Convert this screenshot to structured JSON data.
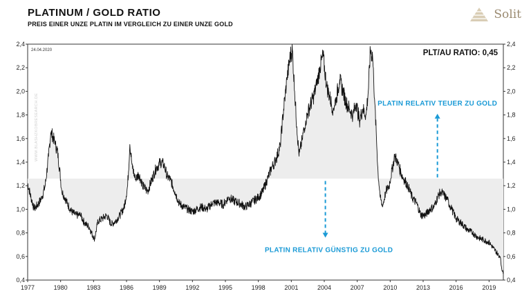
{
  "header": {
    "title": "PLATINUM / GOLD RATIO",
    "subtitle": "PREIS EINER UNZE PLATIN IM VERGLEICH ZU EINER UNZE GOLD",
    "logo_text": "Solit",
    "date": "24.04.2020",
    "watermark": "WWW.BLASHZKOBRESEARCH.DE"
  },
  "chart_data": {
    "type": "line",
    "title": "PLATINUM / GOLD RATIO",
    "subtitle": "PREIS EINER UNZE PLATIN IM VERGLEICH ZU EINER UNZE GOLD",
    "xlim": [
      1977,
      2020.3
    ],
    "ylim": [
      0.4,
      2.4
    ],
    "x_ticks": [
      1977,
      1980,
      1983,
      1986,
      1989,
      1992,
      1995,
      1998,
      2001,
      2004,
      2007,
      2010,
      2013,
      2016,
      2019
    ],
    "y_ticks": [
      0.4,
      0.6,
      0.8,
      1.0,
      1.2,
      1.4,
      1.6,
      1.8,
      2.0,
      2.2,
      2.4
    ],
    "y_tick_labels": [
      "0,4",
      "0,6",
      "0,8",
      "1,0",
      "1,2",
      "1,4",
      "1,6",
      "1,8",
      "2,0",
      "2,2",
      "2,4"
    ],
    "reference_level": 1.26,
    "current_label": "PLT/AU RATIO: 0,45",
    "annotations": [
      {
        "text": "PLATIN RELATIV TEUER ZU GOLD",
        "x": 2014.3,
        "y": 1.27,
        "arrow_to_y": 1.81
      },
      {
        "text": "PLATIN RELATIV GÜNSTIG ZU GOLD",
        "x": 2004.1,
        "y": 1.24,
        "arrow_to_y": 0.76
      }
    ],
    "series": [
      {
        "x": [
          1977,
          1977.3,
          1977.6,
          1978,
          1978.3,
          1978.6,
          1978.9,
          1979.1,
          1979.3,
          1979.5,
          1979.7,
          1979.9,
          1980.1,
          1980.3,
          1980.6,
          1981,
          1981.4,
          1981.8,
          1982.2,
          1982.6,
          1982.9,
          1983.1,
          1983.4,
          1983.8,
          1984.2,
          1984.6,
          1985,
          1985.4,
          1985.8,
          1986.1,
          1986.3,
          1986.5,
          1986.8,
          1987.1,
          1987.5,
          1987.9,
          1988.3,
          1988.7,
          1989.1,
          1989.4,
          1989.7,
          1990,
          1990.4,
          1990.8,
          1991.2,
          1991.6,
          1992,
          1992.4,
          1992.8,
          1993.3,
          1993.8,
          1994.3,
          1994.8,
          1995.3,
          1995.8,
          1996.3,
          1996.8,
          1997.3,
          1997.7,
          1998,
          1998.4,
          1998.8,
          1999.2,
          1999.6,
          2000,
          2000.3,
          2000.6,
          2000.9,
          2001.1,
          2001.3,
          2001.5,
          2001.7,
          2002,
          2002.3,
          2002.6,
          2003,
          2003.3,
          2003.6,
          2003.9,
          2004.2,
          2004.5,
          2004.8,
          2005.1,
          2005.4,
          2005.7,
          2006,
          2006.3,
          2006.6,
          2006.9,
          2007.2,
          2007.5,
          2007.8,
          2008,
          2008.2,
          2008.4,
          2008.5,
          2008.6,
          2008.75,
          2008.9,
          2009.1,
          2009.3,
          2009.6,
          2009.9,
          2010.2,
          2010.4,
          2010.7,
          2011,
          2011.3,
          2011.6,
          2012,
          2012.4,
          2012.8,
          2013.2,
          2013.6,
          2014,
          2014.3,
          2014.6,
          2014.9,
          2015.2,
          2015.6,
          2016,
          2016.5,
          2017,
          2017.5,
          2018,
          2018.5,
          2019,
          2019.4,
          2019.8,
          2020,
          2020.15,
          2020.3
        ],
        "y": [
          1.22,
          1.1,
          1.0,
          1.05,
          1.1,
          1.2,
          1.45,
          1.65,
          1.62,
          1.55,
          1.5,
          1.35,
          1.15,
          1.12,
          1.05,
          0.98,
          0.95,
          0.95,
          0.88,
          0.85,
          0.78,
          0.75,
          0.9,
          0.92,
          0.95,
          0.87,
          0.9,
          0.95,
          1.02,
          1.2,
          1.55,
          1.38,
          1.25,
          1.3,
          1.2,
          1.15,
          1.25,
          1.35,
          1.4,
          1.38,
          1.28,
          1.25,
          1.15,
          1.05,
          1.02,
          1.0,
          0.98,
          1.0,
          1.02,
          1.0,
          1.05,
          1.06,
          1.04,
          1.1,
          1.07,
          1.05,
          1.02,
          1.05,
          1.08,
          1.1,
          1.15,
          1.25,
          1.35,
          1.42,
          1.55,
          1.85,
          2.1,
          2.3,
          2.35,
          2.0,
          1.7,
          1.45,
          1.6,
          1.75,
          1.85,
          1.95,
          2.05,
          2.2,
          2.3,
          2.05,
          1.95,
          1.85,
          1.95,
          2.1,
          2.0,
          1.9,
          1.85,
          1.8,
          1.9,
          1.75,
          1.85,
          1.8,
          2.0,
          2.35,
          2.3,
          2.1,
          1.9,
          1.6,
          1.3,
          1.1,
          1.02,
          1.15,
          1.2,
          1.35,
          1.45,
          1.4,
          1.3,
          1.25,
          1.2,
          1.1,
          1.05,
          0.95,
          0.95,
          1.0,
          1.02,
          1.1,
          1.15,
          1.12,
          1.08,
          1.0,
          0.92,
          0.88,
          0.83,
          0.8,
          0.76,
          0.74,
          0.72,
          0.67,
          0.62,
          0.6,
          0.5,
          0.45
        ]
      }
    ]
  }
}
